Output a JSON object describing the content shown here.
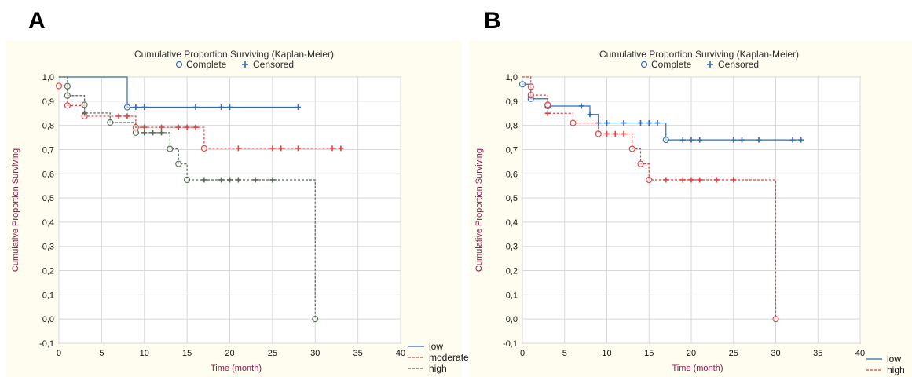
{
  "panels": {
    "a": {
      "letter": "A"
    },
    "b": {
      "letter": "B"
    }
  },
  "chart_data": [
    {
      "type": "line",
      "panel": "A",
      "title": "Cumulative Proportion Surviving (Kaplan-Meier)",
      "marker_legend": {
        "complete": "Complete",
        "censored": "Censored"
      },
      "xlabel": "Time (month)",
      "ylabel": "Cumulative Proportion Surviving",
      "xlim": [
        0,
        40
      ],
      "ylim": [
        -0.1,
        1.0
      ],
      "xticks": [
        "0",
        "5",
        "10",
        "15",
        "20",
        "25",
        "30",
        "35",
        "40"
      ],
      "yticks": [
        "1,0",
        "0,9",
        "0,8",
        "0,7",
        "0,6",
        "0,5",
        "0,4",
        "0,3",
        "0,2",
        "0,1",
        "0,0",
        "-0,1"
      ],
      "grid": true,
      "legend_position": "bottom-right outside",
      "series": [
        {
          "name": "low",
          "color": "#2f6db5",
          "dash": false,
          "steps": [
            [
              0,
              1.0
            ],
            [
              8,
              0.875
            ],
            [
              28,
              0.875
            ]
          ],
          "complete": [
            [
              8,
              0.875
            ]
          ],
          "censored": [
            [
              9,
              0.875
            ],
            [
              10,
              0.875
            ],
            [
              16,
              0.875
            ],
            [
              19,
              0.875
            ],
            [
              20,
              0.875
            ],
            [
              28,
              0.875
            ]
          ]
        },
        {
          "name": "moderate",
          "color": "#e04040",
          "dash": true,
          "steps": [
            [
              0,
              0.963
            ],
            [
              1,
              0.882
            ],
            [
              3,
              0.838
            ],
            [
              9,
              0.792
            ],
            [
              17,
              0.705
            ],
            [
              33,
              0.705
            ]
          ],
          "complete": [
            [
              0,
              0.963
            ],
            [
              1,
              0.882
            ],
            [
              3,
              0.838
            ],
            [
              9,
              0.792
            ],
            [
              17,
              0.705
            ]
          ],
          "censored": [
            [
              7,
              0.838
            ],
            [
              8,
              0.838
            ],
            [
              10,
              0.792
            ],
            [
              12,
              0.792
            ],
            [
              14,
              0.792
            ],
            [
              15,
              0.792
            ],
            [
              16,
              0.792
            ],
            [
              21,
              0.705
            ],
            [
              25,
              0.705
            ],
            [
              26,
              0.705
            ],
            [
              28,
              0.705
            ],
            [
              32,
              0.705
            ],
            [
              33,
              0.705
            ]
          ]
        },
        {
          "name": "high",
          "color": "#556b55",
          "dash": true,
          "steps": [
            [
              0,
              1.0
            ],
            [
              1,
              0.962
            ],
            [
              1,
              0.923
            ],
            [
              3,
              0.885
            ],
            [
              3,
              0.851
            ],
            [
              6,
              0.812
            ],
            [
              9,
              0.77
            ],
            [
              10,
              0.77
            ],
            [
              13,
              0.703
            ],
            [
              14,
              0.641
            ],
            [
              15,
              0.575
            ],
            [
              30,
              0.575
            ],
            [
              30,
              0.0
            ]
          ],
          "complete": [
            [
              1,
              0.962
            ],
            [
              1,
              0.923
            ],
            [
              3,
              0.885
            ],
            [
              6,
              0.812
            ],
            [
              9,
              0.77
            ],
            [
              13,
              0.703
            ],
            [
              14,
              0.641
            ],
            [
              15,
              0.575
            ],
            [
              30,
              0.0
            ]
          ],
          "censored": [
            [
              3,
              0.851
            ],
            [
              10,
              0.77
            ],
            [
              11,
              0.77
            ],
            [
              12,
              0.77
            ],
            [
              17,
              0.575
            ],
            [
              19,
              0.575
            ],
            [
              20,
              0.575
            ],
            [
              21,
              0.575
            ],
            [
              23,
              0.575
            ],
            [
              25,
              0.575
            ]
          ]
        }
      ]
    },
    {
      "type": "line",
      "panel": "B",
      "title": "Cumulative Proportion Surviving (Kaplan-Meier)",
      "marker_legend": {
        "complete": "Complete",
        "censored": "Censored"
      },
      "xlabel": "Time (month)",
      "ylabel": "Cumulative Proportion Surviving",
      "xlim": [
        0,
        40
      ],
      "ylim": [
        -0.1,
        1.0
      ],
      "xticks": [
        "0",
        "5",
        "10",
        "15",
        "20",
        "25",
        "30",
        "35",
        "40"
      ],
      "yticks": [
        "1,0",
        "0,9",
        "0,8",
        "0,7",
        "0,6",
        "0,5",
        "0,4",
        "0,3",
        "0,2",
        "0,1",
        "0,0",
        "-0,1"
      ],
      "grid": true,
      "legend_position": "bottom-right outside",
      "series": [
        {
          "name": "low",
          "color": "#2f6db5",
          "dash": false,
          "steps": [
            [
              0,
              0.97
            ],
            [
              1,
              0.91
            ],
            [
              3,
              0.88
            ],
            [
              8,
              0.845
            ],
            [
              9,
              0.81
            ],
            [
              17,
              0.74
            ],
            [
              33,
              0.74
            ]
          ],
          "complete": [
            [
              0,
              0.97
            ],
            [
              1,
              0.91
            ],
            [
              3,
              0.88
            ],
            [
              17,
              0.74
            ]
          ],
          "censored": [
            [
              7,
              0.88
            ],
            [
              8,
              0.845
            ],
            [
              9,
              0.81
            ],
            [
              10,
              0.81
            ],
            [
              12,
              0.81
            ],
            [
              14,
              0.81
            ],
            [
              15,
              0.81
            ],
            [
              16,
              0.81
            ],
            [
              19,
              0.74
            ],
            [
              20,
              0.74
            ],
            [
              21,
              0.74
            ],
            [
              25,
              0.74
            ],
            [
              26,
              0.74
            ],
            [
              28,
              0.74
            ],
            [
              32,
              0.74
            ],
            [
              33,
              0.74
            ]
          ]
        },
        {
          "name": "high",
          "color": "#e04040",
          "dash": true,
          "steps": [
            [
              0,
              1.0
            ],
            [
              1,
              0.96
            ],
            [
              1,
              0.925
            ],
            [
              3,
              0.885
            ],
            [
              3,
              0.85
            ],
            [
              6,
              0.81
            ],
            [
              9,
              0.765
            ],
            [
              13,
              0.703
            ],
            [
              14,
              0.641
            ],
            [
              15,
              0.575
            ],
            [
              30,
              0.575
            ],
            [
              30,
              0.0
            ]
          ],
          "complete": [
            [
              1,
              0.96
            ],
            [
              1,
              0.925
            ],
            [
              3,
              0.885
            ],
            [
              6,
              0.81
            ],
            [
              9,
              0.765
            ],
            [
              13,
              0.703
            ],
            [
              14,
              0.641
            ],
            [
              15,
              0.575
            ],
            [
              30,
              0.0
            ]
          ],
          "censored": [
            [
              3,
              0.85
            ],
            [
              10,
              0.765
            ],
            [
              11,
              0.765
            ],
            [
              12,
              0.765
            ],
            [
              17,
              0.575
            ],
            [
              19,
              0.575
            ],
            [
              20,
              0.575
            ],
            [
              21,
              0.575
            ],
            [
              23,
              0.575
            ],
            [
              25,
              0.575
            ]
          ]
        }
      ]
    }
  ]
}
